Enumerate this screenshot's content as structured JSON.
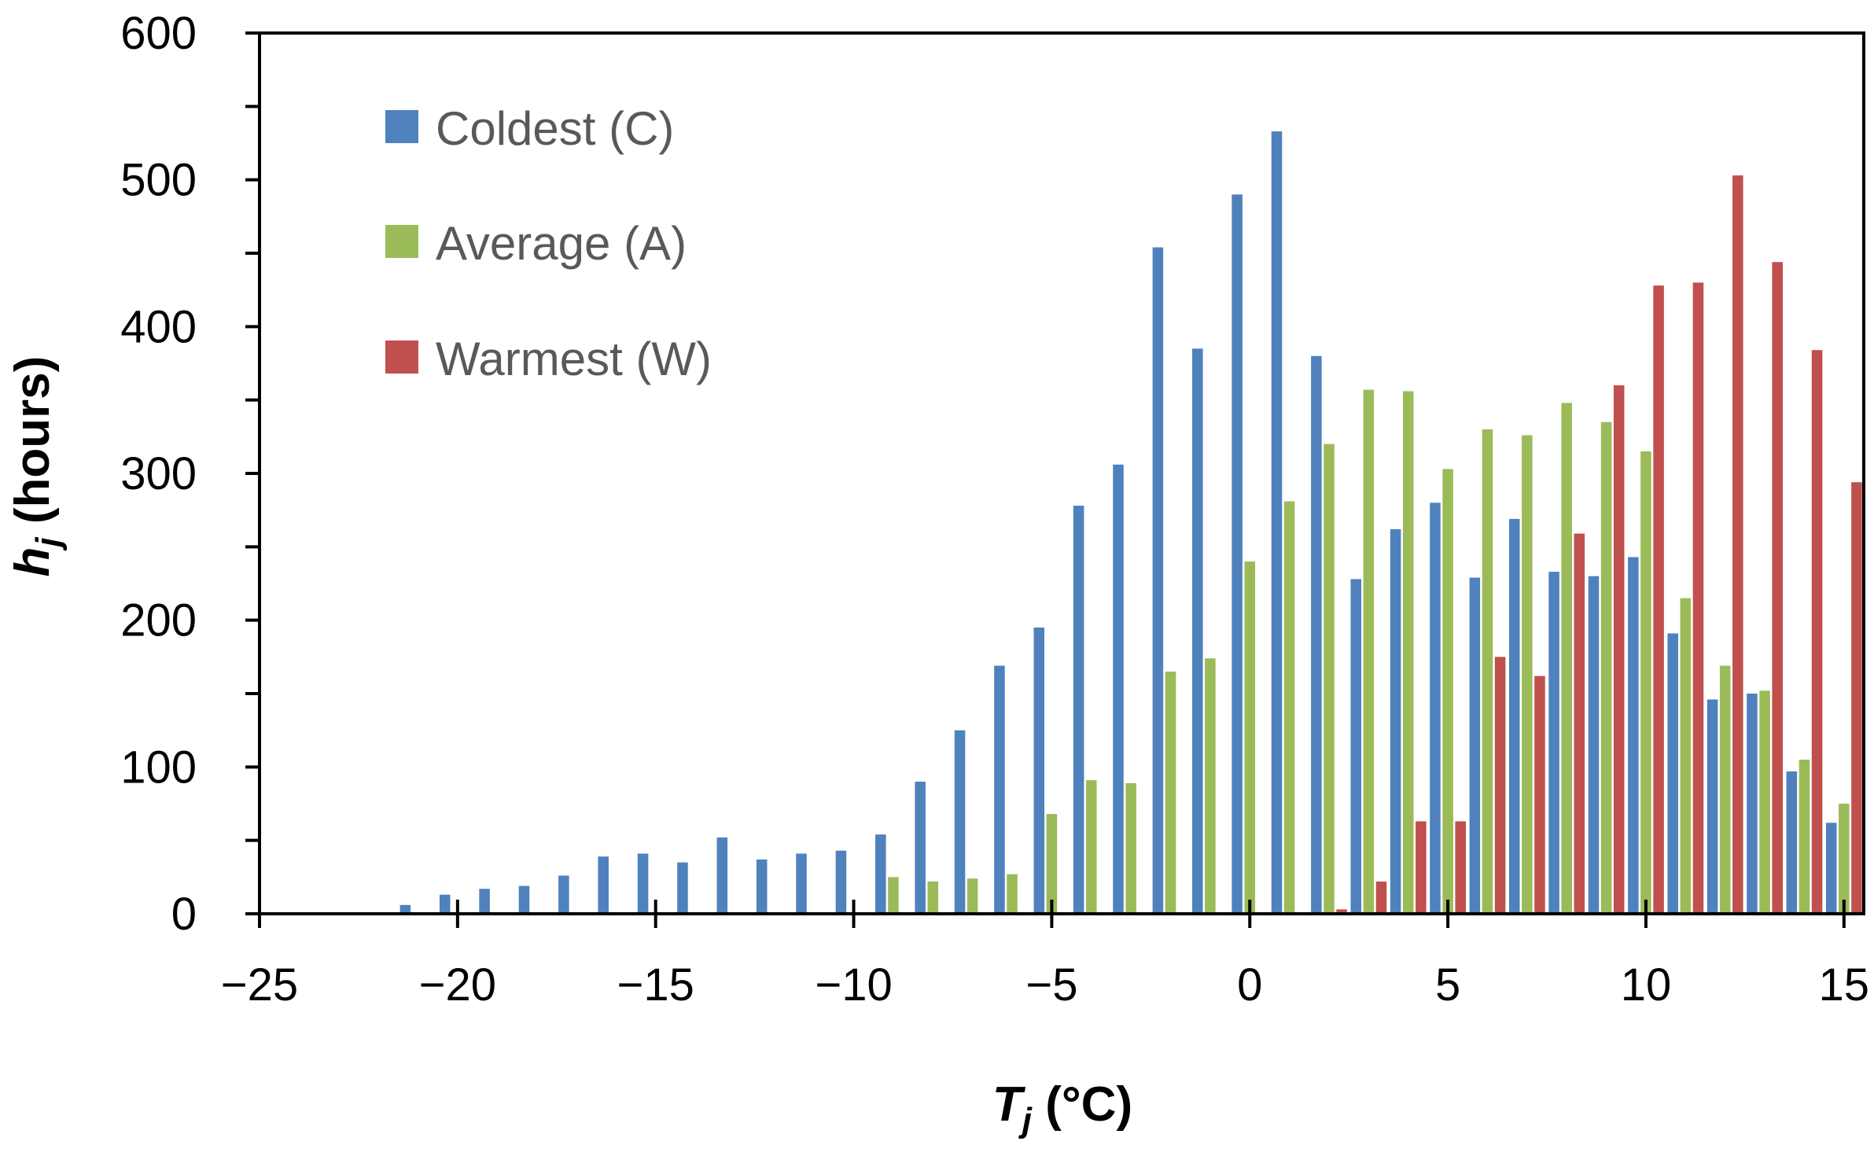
{
  "chart_data": {
    "type": "bar",
    "title": "",
    "xlabel": {
      "main": "T",
      "sub": "j",
      "unit": "(°C)"
    },
    "ylabel": {
      "main": "h",
      "sub": "j",
      "unit": "(hours)"
    },
    "xlim": [
      -25,
      15.5
    ],
    "ylim": [
      0,
      600
    ],
    "xticks": [
      -25,
      -20,
      -15,
      -10,
      -5,
      0,
      5,
      10,
      15
    ],
    "xtick_labels": [
      "−25",
      "−20",
      "−15",
      "−10",
      "−5",
      "0",
      "5",
      "10",
      "15"
    ],
    "yticks": [
      0,
      100,
      200,
      300,
      400,
      500,
      600
    ],
    "ytick_labels": [
      "0",
      "100",
      "200",
      "300",
      "400",
      "500",
      "600"
    ],
    "grid": false,
    "legend_position": "top-left",
    "categories": [
      -21,
      -20,
      -19,
      -18,
      -17,
      -16,
      -15,
      -14,
      -13,
      -12,
      -11,
      -10,
      -9,
      -8,
      -7,
      -6,
      -5,
      -4,
      -3,
      -2,
      -1,
      0,
      1,
      2,
      3,
      4,
      5,
      6,
      7,
      8,
      9,
      10,
      11,
      12,
      13,
      14,
      15
    ],
    "series": [
      {
        "name": "Coldest (C)",
        "color": "#4F81BD",
        "values": [
          6,
          13,
          17,
          19,
          26,
          39,
          41,
          35,
          52,
          37,
          41,
          43,
          54,
          90,
          125,
          169,
          195,
          278,
          306,
          454,
          385,
          490,
          533,
          380,
          228,
          262,
          280,
          229,
          269,
          233,
          230,
          243,
          191,
          146,
          150,
          97,
          62
        ]
      },
      {
        "name": "Average (A)",
        "color": "#9BBB59",
        "values": [
          0,
          0,
          0,
          0,
          0,
          0,
          0,
          0,
          0,
          0,
          0,
          0,
          25,
          22,
          24,
          27,
          68,
          91,
          89,
          165,
          174,
          240,
          281,
          320,
          357,
          356,
          303,
          330,
          326,
          348,
          335,
          315,
          215,
          169,
          152,
          105,
          75
        ]
      },
      {
        "name": "Warmest (W)",
        "color": "#C0504D",
        "values": [
          0,
          0,
          0,
          0,
          0,
          0,
          0,
          0,
          0,
          0,
          0,
          0,
          0,
          0,
          0,
          0,
          0,
          0,
          0,
          0,
          0,
          0,
          0,
          3,
          22,
          63,
          63,
          175,
          162,
          259,
          360,
          428,
          430,
          503,
          444,
          384,
          294
        ]
      }
    ]
  }
}
